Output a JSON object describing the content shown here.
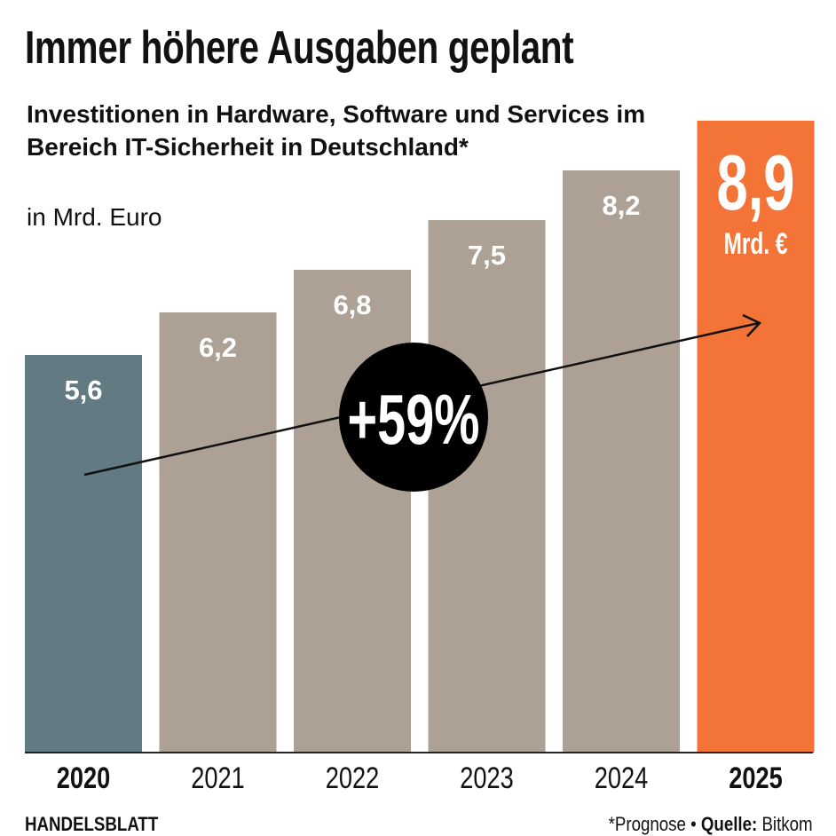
{
  "chart_data": {
    "type": "bar",
    "title": "Immer höhere Ausgaben geplant",
    "subtitle": "Investitionen in Hardware, Software und Services im Bereich IT-Sicherheit in Deutschland*",
    "ylabel": "in Mrd. Euro",
    "categories": [
      "2020",
      "2021",
      "2022",
      "2023",
      "2024",
      "2025"
    ],
    "values": [
      5.6,
      6.2,
      6.8,
      7.5,
      8.2,
      8.9
    ],
    "value_labels": [
      "5,6",
      "6,2",
      "6,8",
      "7,5",
      "8,2",
      "8,9"
    ],
    "highlight_unit": "Mrd. €",
    "ylim": [
      0,
      10.6
    ],
    "grid": false,
    "colors": {
      "first": "#627a82",
      "middle": "#ada195",
      "last": "#f47336"
    },
    "annotation": "+59%"
  },
  "footer": {
    "brand": "HANDELSBLATT",
    "note": "*Prognose • ",
    "source_label": "Quelle:",
    "source": " Bitkom"
  }
}
